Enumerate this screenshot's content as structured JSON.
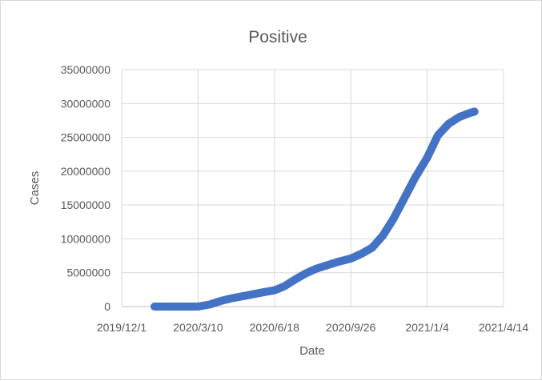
{
  "chart_data": {
    "type": "line",
    "title": "Positive",
    "xlabel": "Date",
    "ylabel": "Cases",
    "x_ticks": [
      "2019/12/1",
      "2020/3/10",
      "2020/6/18",
      "2020/9/26",
      "2021/1/4",
      "2021/4/14"
    ],
    "xlim": [
      "2019/12/1",
      "2021/4/14"
    ],
    "y_ticks": [
      0,
      5000000,
      10000000,
      15000000,
      20000000,
      25000000,
      30000000,
      35000000
    ],
    "ylim": [
      0,
      35000000
    ],
    "grid": true,
    "legend": "none",
    "series_color": "#4472c4",
    "series": [
      {
        "x": [
          "2020/1/13",
          "2020/1/27",
          "2020/2/10",
          "2020/2/24",
          "2020/3/10",
          "2020/3/25",
          "2020/4/8",
          "2020/4/22",
          "2020/5/6",
          "2020/5/20",
          "2020/6/3",
          "2020/6/18",
          "2020/7/1",
          "2020/7/15",
          "2020/7/29",
          "2020/8/12",
          "2020/8/26",
          "2020/9/9",
          "2020/9/26",
          "2020/10/10",
          "2020/10/24",
          "2020/11/7",
          "2020/11/21",
          "2020/12/5",
          "2020/12/19",
          "2021/1/4",
          "2021/1/18",
          "2021/2/1",
          "2021/2/15",
          "2021/3/1",
          "2021/3/7"
        ],
        "values": [
          0,
          0,
          0,
          0,
          0,
          300000,
          800000,
          1200000,
          1500000,
          1800000,
          2100000,
          2400000,
          3000000,
          4000000,
          4900000,
          5600000,
          6100000,
          6600000,
          7100000,
          7800000,
          8700000,
          10500000,
          13000000,
          16000000,
          19000000,
          22000000,
          25300000,
          27000000,
          28000000,
          28600000,
          28800000
        ]
      }
    ]
  }
}
